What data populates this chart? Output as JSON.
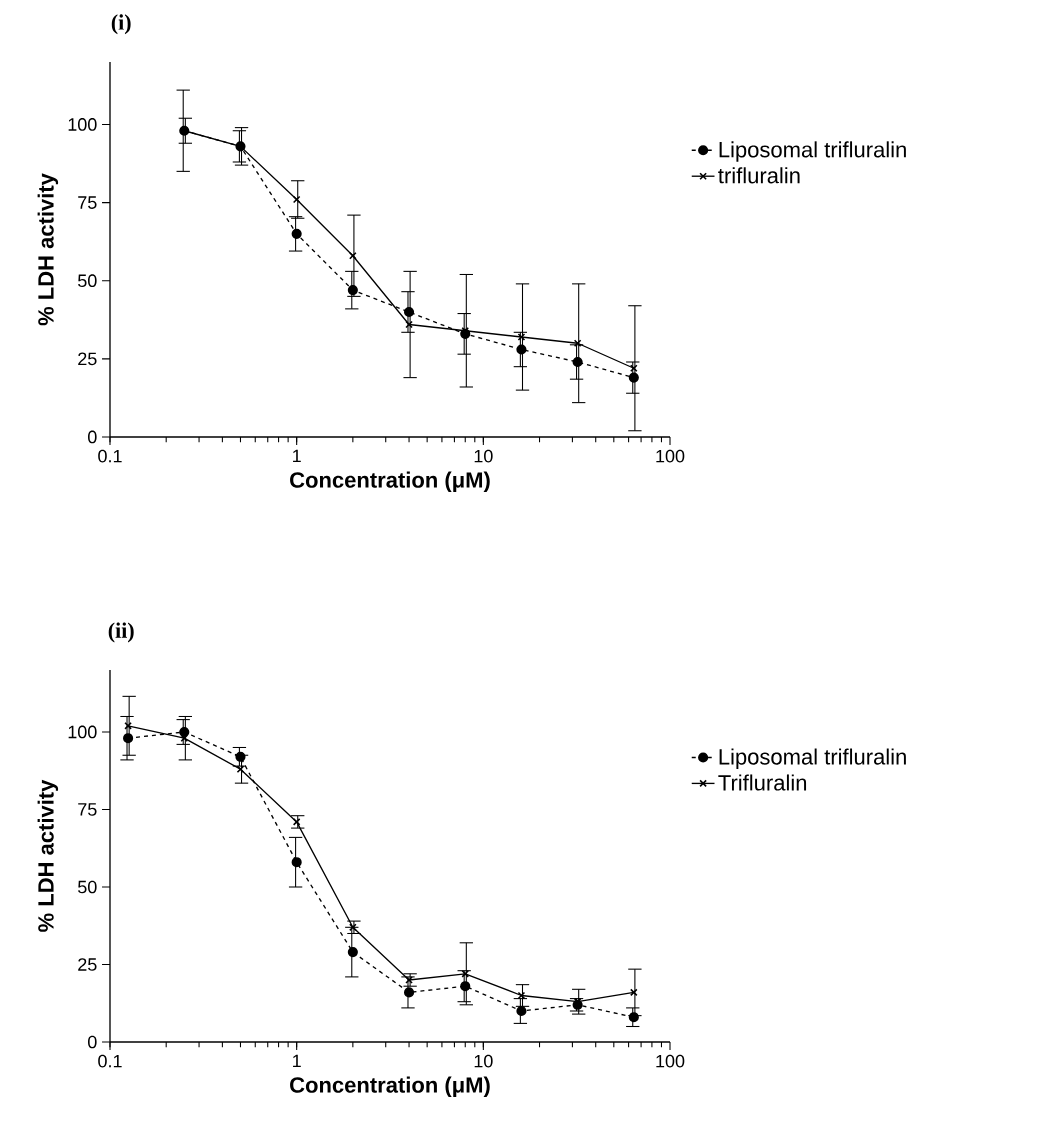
{
  "chart_data": [
    {
      "type": "line",
      "title": "(i)",
      "xlabel": "Concentration (μM)",
      "ylabel": "% LDH activity",
      "log": "x",
      "xlim": [
        0.1,
        100
      ],
      "xticks": [
        0.1,
        1,
        10,
        100
      ],
      "ylim": [
        0,
        120
      ],
      "yticks": [
        0,
        25,
        50,
        75,
        100
      ],
      "legend": "right",
      "x": [
        0.25,
        0.5,
        1,
        2,
        4,
        8,
        16,
        32,
        64
      ],
      "series": [
        {
          "name": "Liposomal trifluralin",
          "color": "#000000",
          "marker": "circle",
          "line_style": "dashed",
          "values": [
            98,
            93,
            65,
            47,
            40,
            33,
            28,
            24,
            19
          ],
          "errors": [
            13,
            5,
            5.5,
            6,
            6.5,
            6.5,
            5.5,
            5.5,
            5
          ]
        },
        {
          "name": "trifluralin",
          "color": "#000000",
          "marker": "cross",
          "line_style": "solid",
          "values": [
            98,
            93,
            76,
            58,
            36,
            34,
            32,
            30,
            22
          ],
          "errors": [
            4,
            6,
            6,
            13,
            17,
            18,
            17,
            19,
            20
          ]
        }
      ]
    },
    {
      "type": "line",
      "title": "(ii)",
      "xlabel": "Concentration (μM)",
      "ylabel": "% LDH activity",
      "log": "x",
      "xlim": [
        0.1,
        100
      ],
      "xticks": [
        0.1,
        1,
        10,
        100
      ],
      "ylim": [
        0,
        120
      ],
      "yticks": [
        0,
        25,
        50,
        75,
        100
      ],
      "legend": "right",
      "x": [
        0.125,
        0.25,
        0.5,
        1,
        2,
        4,
        8,
        16,
        32,
        64
      ],
      "series": [
        {
          "name": "Liposomal trifluralin",
          "color": "#000000",
          "marker": "circle",
          "line_style": "dashed",
          "values": [
            98,
            100,
            92,
            58,
            29,
            16,
            18,
            10,
            12,
            8
          ],
          "errors": [
            7,
            4,
            3,
            8,
            8,
            5,
            5,
            4,
            2,
            3
          ]
        },
        {
          "name": "Trifluralin",
          "color": "#000000",
          "marker": "cross",
          "line_style": "solid",
          "values": [
            102,
            98,
            88,
            71,
            37,
            20,
            22,
            15,
            13,
            16
          ],
          "errors": [
            9.5,
            7,
            4.5,
            2,
            2,
            2,
            10,
            3.5,
            4,
            7.5
          ]
        }
      ]
    }
  ]
}
